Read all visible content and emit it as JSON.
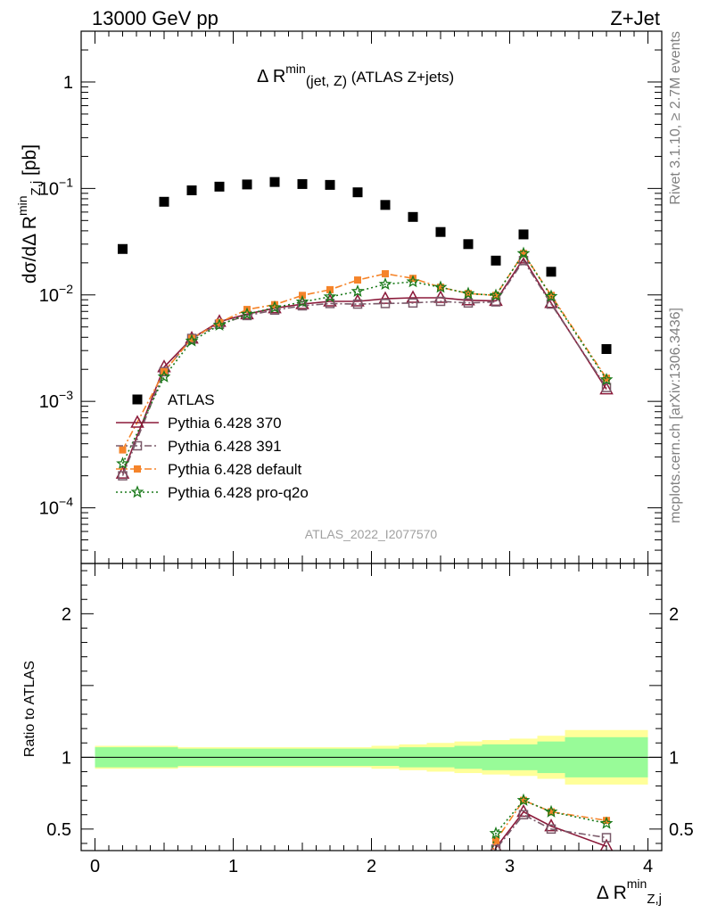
{
  "header": {
    "energy": "13000 GeV pp",
    "process": "Z+Jet",
    "rivet": "Rivet 3.1.10, ≥ 2.7M events",
    "mcplots": "mcplots.cern.ch [arXiv:1306.3436]",
    "analysis": "ATLAS_2022_I2077570"
  },
  "title": {
    "prefix": "Δ R",
    "sup": "min",
    "sub": "(jet, Z)",
    "suffix": " (ATLAS Z+jets)"
  },
  "ylabel": {
    "main": "dσ/dΔ R",
    "sup": "min",
    "sub": "Z,j",
    "unit": " [pb]"
  },
  "xlabel": {
    "main": "Δ R",
    "sup": "min",
    "sub": "Z,j"
  },
  "ratio_ylabel": "Ratio to ATLAS",
  "tick_labels": {
    "main_y": [
      {
        "b": "10",
        "e": "−4",
        "v": 0.0001
      },
      {
        "b": "10",
        "e": "−3",
        "v": 0.001
      },
      {
        "b": "10",
        "e": "−2",
        "v": 0.01
      },
      {
        "b": "10",
        "e": "−1",
        "v": 0.1
      },
      {
        "b": "1",
        "e": "",
        "v": 1
      }
    ],
    "ratio_y": [
      {
        "t": "0.5",
        "v": 0.5
      },
      {
        "t": "1",
        "v": 1
      },
      {
        "t": "2",
        "v": 2
      }
    ],
    "x": [
      {
        "t": "0",
        "v": 0
      },
      {
        "t": "1",
        "v": 1
      },
      {
        "t": "2",
        "v": 2
      },
      {
        "t": "3",
        "v": 3
      },
      {
        "t": "4",
        "v": 4
      }
    ]
  },
  "chart_data": {
    "type": "scatter",
    "log_y": true,
    "xlim": [
      -0.1,
      4.1
    ],
    "ylim": [
      3e-05,
      3.0
    ],
    "ratio_ylim": [
      0.35,
      2.35
    ],
    "x": [
      0.2,
      0.5,
      0.7,
      0.9,
      1.1,
      1.3,
      1.5,
      1.7,
      1.9,
      2.1,
      2.3,
      2.5,
      2.7,
      2.9,
      3.1,
      3.3,
      3.7
    ],
    "series": [
      {
        "name": "ATLAS",
        "role": "data",
        "marker": "square",
        "color": "#000000",
        "values": [
          0.027,
          0.075,
          0.096,
          0.104,
          0.109,
          0.115,
          0.11,
          0.108,
          0.092,
          0.07,
          0.054,
          0.039,
          0.03,
          0.021,
          0.037,
          0.0165,
          0.0031
        ]
      },
      {
        "name": "Pythia 6.428 370",
        "marker": "triangle",
        "color": "#8b1a3a",
        "dash": "",
        "values": [
          0.00021,
          0.0021,
          0.0039,
          0.0056,
          0.0066,
          0.0075,
          0.0082,
          0.0087,
          0.0087,
          0.0092,
          0.0094,
          0.0094,
          0.0089,
          0.0088,
          0.022,
          0.0084,
          0.0013
        ]
      },
      {
        "name": "Pythia 6.428 391",
        "marker": "square-open",
        "color": "#7a5a6a",
        "dash": "8,3,2,3",
        "values": [
          0.0002,
          0.0019,
          0.0039,
          0.0053,
          0.0064,
          0.0072,
          0.0079,
          0.0083,
          0.0082,
          0.0083,
          0.0084,
          0.0087,
          0.0084,
          0.0086,
          0.021,
          0.0082,
          0.00135
        ]
      },
      {
        "name": "Pythia 6.428 default",
        "marker": "square-filled",
        "color": "#f5842a",
        "dash": "8,3,2,3",
        "values": [
          0.00035,
          0.0019,
          0.0039,
          0.0055,
          0.0073,
          0.0081,
          0.0099,
          0.0112,
          0.0138,
          0.0158,
          0.0143,
          0.0118,
          0.0103,
          0.0099,
          0.0245,
          0.0099,
          0.00165
        ]
      },
      {
        "name": "Pythia 6.428 pro-q2o",
        "marker": "star",
        "color": "#1a7a1a",
        "dash": "2,3",
        "values": [
          0.00026,
          0.0017,
          0.0037,
          0.0052,
          0.0066,
          0.0076,
          0.0086,
          0.0096,
          0.0108,
          0.0126,
          0.0133,
          0.0118,
          0.0103,
          0.0099,
          0.0245,
          0.0097,
          0.0016
        ]
      }
    ],
    "ratio_bands": {
      "edges": [
        0.0,
        0.4,
        0.6,
        0.8,
        1.0,
        1.2,
        1.4,
        1.6,
        1.8,
        2.0,
        2.2,
        2.4,
        2.6,
        2.8,
        3.0,
        3.2,
        3.4,
        4.0
      ],
      "inner_err": [
        0.07,
        0.07,
        0.06,
        0.06,
        0.06,
        0.06,
        0.06,
        0.06,
        0.06,
        0.06,
        0.07,
        0.07,
        0.08,
        0.09,
        0.09,
        0.11,
        0.14
      ],
      "outer_err": [
        0.08,
        0.08,
        0.07,
        0.07,
        0.07,
        0.07,
        0.07,
        0.07,
        0.07,
        0.08,
        0.09,
        0.1,
        0.11,
        0.12,
        0.13,
        0.15,
        0.19
      ],
      "inner_color": "#98fb98",
      "outer_color": "#ffff99"
    },
    "ratio_series": [
      {
        "name": "Pythia 6.428 370",
        "x": [
          2.9,
          3.1,
          3.3,
          3.7
        ],
        "values": [
          0.37,
          0.62,
          0.52,
          0.38
        ]
      },
      {
        "name": "Pythia 6.428 391",
        "x": [
          2.9,
          3.1,
          3.3,
          3.7
        ],
        "values": [
          0.36,
          0.6,
          0.5,
          0.44
        ]
      },
      {
        "name": "Pythia 6.428 default",
        "x": [
          2.9,
          3.1,
          3.3,
          3.7
        ],
        "values": [
          0.42,
          0.7,
          0.62,
          0.56
        ]
      },
      {
        "name": "Pythia 6.428 pro-q2o",
        "x": [
          2.9,
          3.1,
          3.3,
          3.7
        ],
        "values": [
          0.47,
          0.7,
          0.62,
          0.54
        ]
      }
    ]
  }
}
